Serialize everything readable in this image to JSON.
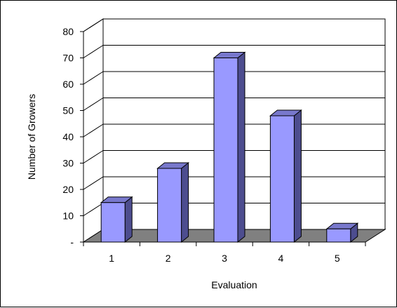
{
  "chart_data": {
    "type": "bar",
    "style": "3d-column",
    "categories": [
      "1",
      "2",
      "3",
      "4",
      "5"
    ],
    "values": [
      15,
      28,
      70,
      48,
      5
    ],
    "title": "",
    "xlabel": "Evaluation",
    "ylabel": "Number of Growers",
    "ylim": [
      0,
      80
    ],
    "yticks": [
      0,
      10,
      20,
      30,
      40,
      50,
      60,
      70,
      80
    ],
    "ytick_labels": [
      "-",
      "10",
      "20",
      "30",
      "40",
      "50",
      "60",
      "70",
      "80"
    ],
    "grid": true,
    "legend": "none"
  },
  "colors": {
    "bar_front": "#9999ff",
    "bar_side": "#4d4d8f",
    "bar_top": "#7878cc",
    "floor": "#808080",
    "grid": "#000000",
    "text": "#000000"
  }
}
